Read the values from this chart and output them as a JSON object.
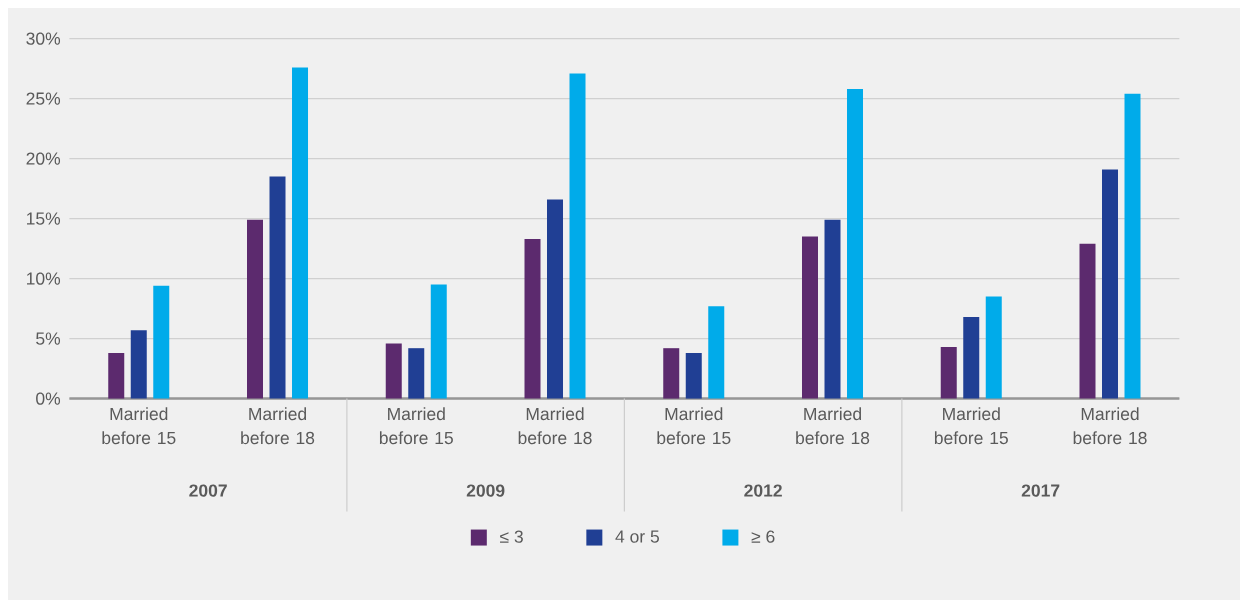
{
  "chart_data": {
    "type": "bar",
    "categories": [
      "Married before 15",
      "Married before 18",
      "Married before 15",
      "Married before 18",
      "Married before 15",
      "Married before 18",
      "Married before 15",
      "Married before 18"
    ],
    "series": [
      {
        "name": "≤ 3",
        "color": "#5c2a6e",
        "values": [
          3.8,
          14.9,
          4.6,
          13.3,
          4.2,
          13.5,
          4.3,
          12.9
        ]
      },
      {
        "name": "4 or 5",
        "color": "#203f94",
        "values": [
          5.7,
          18.5,
          4.2,
          16.6,
          3.8,
          14.9,
          6.8,
          19.1
        ]
      },
      {
        "name": "≥ 6",
        "color": "#00abea",
        "values": [
          9.4,
          27.6,
          9.5,
          27.1,
          7.7,
          25.8,
          8.5,
          25.4
        ]
      }
    ],
    "ylim": [
      0,
      30
    ],
    "yticks": [
      {
        "value": 0,
        "label": "0%"
      },
      {
        "value": 5,
        "label": "5%"
      },
      {
        "value": 10,
        "label": "10%"
      },
      {
        "value": 15,
        "label": "15%"
      },
      {
        "value": 20,
        "label": "20%"
      },
      {
        "value": 25,
        "label": "25%"
      },
      {
        "value": 30,
        "label": "30%"
      }
    ],
    "grid": "y",
    "legend": "bottom",
    "annotations": [
      "2007",
      "2009",
      "2012",
      "2017"
    ]
  }
}
